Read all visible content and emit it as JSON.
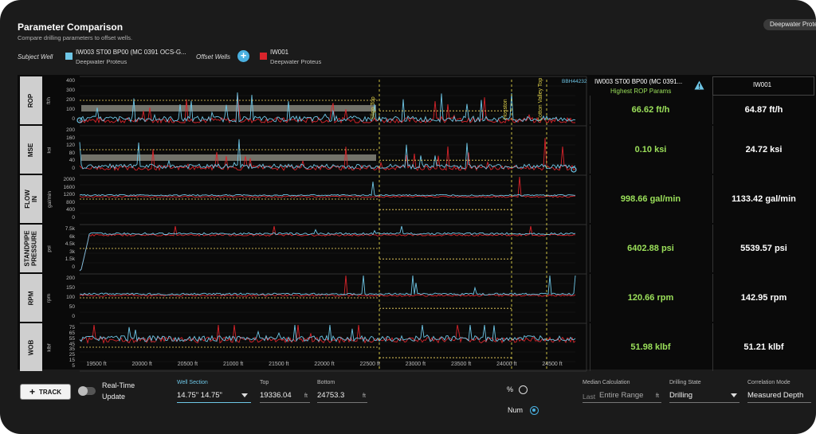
{
  "header": {
    "title": "Parameter Comparison",
    "subtitle": "Compare drilling parameters to offset wells.",
    "selected_well_chip": "Deepwater Proteus"
  },
  "wells": {
    "subject_label": "Subject Well",
    "subject_name": "IW003 ST00 BP00 (MC 0391 OCS-G...",
    "subject_sub": "Deepwater Proteus",
    "subject_color": "#6ec6e6",
    "offset_label": "Offset Wells",
    "offset_name": "IW001",
    "offset_sub": "Deepwater Proteus",
    "offset_color": "#d9242b",
    "add_icon": "plus-icon"
  },
  "table_header": {
    "subject_name": "IW003 ST00 BP00 (MC 0391...",
    "subject_note": "Highest ROP Params",
    "warning_icon": "warning-triangle-icon",
    "offset_name": "IW001"
  },
  "plot_overlay_label": "BBH44232",
  "formation_markers": [
    "Sligo Top",
    "Hosston",
    "Cotton Valley Top"
  ],
  "tracks": [
    {
      "label": "ROP",
      "unit": "ft/h",
      "ticks": [
        "400",
        "300",
        "200",
        "100",
        "0"
      ],
      "subject_value": "66.62 ft/h",
      "offset_value": "64.87 ft/h"
    },
    {
      "label": "MSE",
      "unit": "ksi",
      "ticks": [
        "200",
        "160",
        "120",
        "80",
        "40",
        "0"
      ],
      "subject_value": "0.10 ksi",
      "offset_value": "24.72 ksi"
    },
    {
      "label": "FLOW IN",
      "unit": "gal/min",
      "ticks": [
        "2000",
        "1600",
        "1200",
        "800",
        "400",
        "0"
      ],
      "subject_value": "998.66 gal/min",
      "offset_value": "1133.42 gal/min"
    },
    {
      "label": "STANDPIPE PRESSURE",
      "unit": "psi",
      "ticks": [
        "7.5k",
        "6k",
        "4.5k",
        "3k",
        "1.5k",
        "0"
      ],
      "subject_value": "6402.88 psi",
      "offset_value": "5539.57 psi"
    },
    {
      "label": "RPM",
      "unit": "rpm",
      "ticks": [
        "200",
        "150",
        "100",
        "50",
        "0"
      ],
      "subject_value": "120.66 rpm",
      "offset_value": "142.95 rpm"
    },
    {
      "label": "WOB",
      "unit": "klbf",
      "ticks": [
        "75",
        "65",
        "55",
        "45",
        "35",
        "25",
        "15",
        "5"
      ],
      "subject_value": "51.98 klbf",
      "offset_value": "51.21 klbf"
    }
  ],
  "x_axis_labels": [
    "19500 ft",
    "20000 ft",
    "20500 ft",
    "21000 ft",
    "21500 ft",
    "22000 ft",
    "22500 ft",
    "23000 ft",
    "23500 ft",
    "24000 ft",
    "24500 ft"
  ],
  "controls": {
    "track_button": "TRACK",
    "realtime_label_1": "Real-Time",
    "realtime_label_2": "Update",
    "well_section_label": "Well Section",
    "well_section_value": "14.75\" 14.75\"",
    "top_label": "Top",
    "top_value": "19336.04",
    "top_unit": "ft",
    "bottom_label": "Bottom",
    "bottom_value": "24753.3",
    "bottom_unit": "ft",
    "pct_label": "%",
    "num_label": "Num",
    "median_label": "Median Calculation",
    "median_prefix": "Last",
    "median_value": "Entire Range",
    "median_unit": "ft",
    "drilling_state_label": "Drilling State",
    "drilling_state_value": "Drilling",
    "correlation_label": "Correlation Mode",
    "correlation_value": "Measured Depth"
  }
}
